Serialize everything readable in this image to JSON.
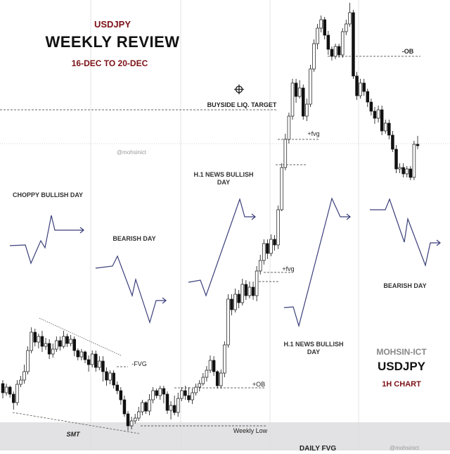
{
  "header": {
    "symbol": "USDJPY",
    "title": "WEEKLY REVIEW",
    "date_range": "16-DEC TO 20-DEC"
  },
  "days": [
    "CHOPPY BULLISH DAY",
    "BEARISH DAY",
    "H.1 NEWS BULLISH DAY",
    "H.1 NEWS BULLISH DAY",
    "BEARISH DAY"
  ],
  "brand": {
    "author": "MOHSIN-ICT",
    "symbol": "USDJPY",
    "timeframe": "1H CHART",
    "watermark": "@mohsinict"
  },
  "colors": {
    "bull": "#ffffff",
    "bear": "#111111",
    "accent": "#7b1016",
    "sketch": "#3a3f7a",
    "fvg_zone": "#e2e2e4"
  },
  "chart_data": {
    "type": "candlestick",
    "timeframe": "1H",
    "title": "",
    "xlabel": "",
    "ylabel": "",
    "annotations": {
      "buyside": "BUYSIDE LIQ. TARGET",
      "ob_top": "-OB",
      "fvg_upper": "+fvg",
      "fvg_lower": "+fvg",
      "neg_fvg": "-FVG",
      "ob_bottom": "+OB",
      "weekly_low": "Weekly Low",
      "smt": "SMT",
      "daily_fvg": "DAILY FVG"
    },
    "candles": [
      [
        545,
        558,
        540,
        566
      ],
      [
        558,
        550,
        545,
        562
      ],
      [
        550,
        560,
        548,
        565
      ],
      [
        560,
        572,
        556,
        582
      ],
      [
        572,
        546,
        540,
        576
      ],
      [
        546,
        540,
        534,
        550
      ],
      [
        540,
        528,
        518,
        545
      ],
      [
        528,
        498,
        492,
        532
      ],
      [
        498,
        472,
        465,
        502
      ],
      [
        472,
        486,
        467,
        492
      ],
      [
        486,
        478,
        474,
        495
      ],
      [
        478,
        492,
        470,
        500
      ],
      [
        492,
        488,
        480,
        497
      ],
      [
        488,
        503,
        482,
        510
      ],
      [
        503,
        496,
        488,
        508
      ],
      [
        496,
        484,
        478,
        500
      ],
      [
        484,
        492,
        478,
        498
      ],
      [
        492,
        478,
        470,
        495
      ],
      [
        478,
        488,
        474,
        493
      ],
      [
        488,
        482,
        476,
        492
      ],
      [
        482,
        498,
        478,
        506
      ],
      [
        498,
        507,
        495,
        512
      ],
      [
        507,
        500,
        496,
        512
      ],
      [
        500,
        511,
        498,
        516
      ],
      [
        511,
        518,
        505,
        528
      ],
      [
        518,
        503,
        498,
        522
      ],
      [
        503,
        522,
        498,
        528
      ],
      [
        522,
        513,
        506,
        526
      ],
      [
        513,
        528,
        506,
        542
      ],
      [
        528,
        540,
        522,
        548
      ],
      [
        540,
        530,
        526,
        546
      ],
      [
        530,
        547,
        526,
        552
      ],
      [
        547,
        555,
        542,
        560
      ],
      [
        555,
        568,
        550,
        575
      ],
      [
        568,
        588,
        562,
        592
      ],
      [
        588,
        605,
        584,
        612
      ],
      [
        605,
        598,
        592,
        610
      ],
      [
        598,
        594,
        588,
        602
      ],
      [
        594,
        585,
        578,
        598
      ],
      [
        585,
        572,
        568,
        590
      ],
      [
        572,
        584,
        570,
        588
      ],
      [
        584,
        568,
        560,
        590
      ],
      [
        568,
        555,
        550,
        573
      ],
      [
        555,
        562,
        552,
        566
      ],
      [
        562,
        552,
        548,
        568
      ],
      [
        552,
        560,
        548,
        573
      ],
      [
        560,
        583,
        556,
        588
      ],
      [
        583,
        576,
        570,
        596
      ],
      [
        576,
        586,
        562,
        590
      ],
      [
        586,
        566,
        558,
        592
      ],
      [
        566,
        555,
        550,
        570
      ],
      [
        555,
        562,
        548,
        568
      ],
      [
        562,
        568,
        550,
        572
      ],
      [
        568,
        558,
        552,
        574
      ],
      [
        558,
        550,
        545,
        562
      ],
      [
        550,
        545,
        540,
        556
      ],
      [
        545,
        536,
        530,
        548
      ],
      [
        536,
        526,
        520,
        542
      ],
      [
        526,
        512,
        505,
        530
      ],
      [
        512,
        528,
        506,
        534
      ],
      [
        528,
        548,
        526,
        552
      ],
      [
        548,
        530,
        525,
        552
      ],
      [
        530,
        490,
        485,
        536
      ],
      [
        490,
        425,
        418,
        494
      ],
      [
        425,
        440,
        418,
        448
      ],
      [
        440,
        418,
        410,
        444
      ],
      [
        418,
        430,
        412,
        438
      ],
      [
        430,
        404,
        396,
        434
      ],
      [
        404,
        420,
        398,
        426
      ],
      [
        420,
        408,
        400,
        424
      ],
      [
        408,
        420,
        400,
        426
      ],
      [
        420,
        385,
        378,
        428
      ],
      [
        385,
        370,
        362,
        390
      ],
      [
        370,
        346,
        340,
        376
      ],
      [
        346,
        360,
        340,
        368
      ],
      [
        360,
        340,
        333,
        364
      ],
      [
        340,
        348,
        334,
        356
      ],
      [
        348,
        298,
        292,
        354
      ],
      [
        298,
        238,
        232,
        300
      ],
      [
        238,
        198,
        190,
        242
      ],
      [
        198,
        165,
        160,
        204
      ],
      [
        165,
        118,
        112,
        170
      ],
      [
        118,
        137,
        112,
        146
      ],
      [
        137,
        125,
        114,
        140
      ],
      [
        125,
        165,
        120,
        170
      ],
      [
        165,
        148,
        140,
        172
      ],
      [
        148,
        98,
        92,
        152
      ],
      [
        98,
        62,
        56,
        102
      ],
      [
        62,
        40,
        34,
        70
      ],
      [
        40,
        28,
        22,
        46
      ],
      [
        28,
        50,
        24,
        56
      ],
      [
        50,
        70,
        44,
        78
      ],
      [
        70,
        80,
        66,
        86
      ],
      [
        80,
        66,
        62,
        84
      ],
      [
        66,
        78,
        62,
        82
      ],
      [
        78,
        45,
        40,
        82
      ],
      [
        45,
        34,
        28,
        50
      ],
      [
        34,
        18,
        4,
        38
      ],
      [
        18,
        108,
        14,
        112
      ],
      [
        108,
        136,
        102,
        142
      ],
      [
        136,
        118,
        112,
        140
      ],
      [
        118,
        130,
        112,
        136
      ],
      [
        130,
        145,
        126,
        152
      ],
      [
        145,
        158,
        140,
        164
      ],
      [
        158,
        168,
        152,
        176
      ],
      [
        168,
        156,
        150,
        174
      ],
      [
        156,
        186,
        150,
        192
      ],
      [
        186,
        175,
        170,
        190
      ],
      [
        175,
        192,
        170,
        198
      ],
      [
        192,
        212,
        186,
        216
      ],
      [
        212,
        240,
        206,
        246
      ],
      [
        240,
        238,
        232,
        246
      ],
      [
        238,
        247,
        232,
        252
      ],
      [
        247,
        240,
        236,
        252
      ],
      [
        240,
        252,
        236,
        256
      ],
      [
        252,
        205,
        200,
        256
      ],
      [
        205,
        207,
        193,
        212
      ]
    ],
    "levels": [
      {
        "name": "buyside-liquidity",
        "y": 156,
        "from": 0,
        "to": 395
      },
      {
        "name": "ob-top",
        "y": 80,
        "from": 466,
        "to": 598
      },
      {
        "name": "fvg-upper",
        "y": 198,
        "from": 395,
        "to": 454
      },
      {
        "name": "fvg-mid",
        "y": 234,
        "from": 392,
        "to": 436
      },
      {
        "name": "fvg-lower",
        "y": 387,
        "from": 375,
        "to": 416
      },
      {
        "name": "fvg-lower-2",
        "y": 400,
        "from": 368,
        "to": 396
      },
      {
        "name": "neg-fvg",
        "y": 521,
        "from": 166,
        "to": 182
      },
      {
        "name": "ob-bottom",
        "y": 551,
        "from": 248,
        "to": 377
      },
      {
        "name": "weekly-low",
        "y": 605,
        "from": 200,
        "to": 378
      }
    ]
  }
}
